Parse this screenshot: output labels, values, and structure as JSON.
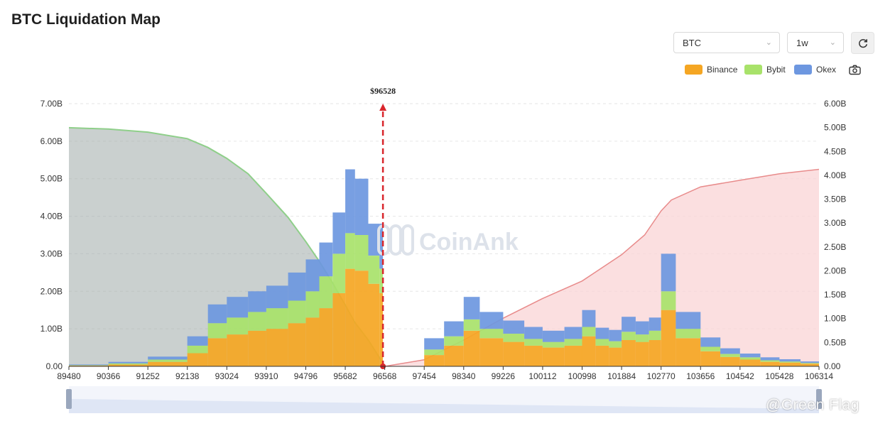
{
  "page": {
    "title": "BTC Liquidation Map"
  },
  "controls": {
    "coin_select": {
      "value": "BTC"
    },
    "period_select": {
      "value": "1w"
    },
    "refresh_icon": "refresh-icon",
    "screenshot_icon": "camera-icon"
  },
  "watermark": {
    "chart_text": "CoinAnk",
    "corner_text": "@Green Flag"
  },
  "chart_data": {
    "type": "area",
    "current_price_label": "$96528",
    "current_price": 96528,
    "x_ticks": [
      "89480",
      "90366",
      "91252",
      "92138",
      "93024",
      "93910",
      "94796",
      "95682",
      "96568",
      "97454",
      "98340",
      "99226",
      "100112",
      "100998",
      "101884",
      "102770",
      "103656",
      "104542",
      "105428",
      "106314"
    ],
    "x_range": [
      89480,
      106314
    ],
    "y_left": {
      "ticks": [
        "0.00",
        "1.00B",
        "2.00B",
        "3.00B",
        "4.00B",
        "5.00B",
        "6.00B",
        "7.00B"
      ],
      "range": [
        0,
        7
      ]
    },
    "y_right": {
      "ticks": [
        "0.00",
        "0.50B",
        "1.00B",
        "1.50B",
        "2.00B",
        "2.50B",
        "3.00B",
        "3.50B",
        "4.00B",
        "4.50B",
        "5.00B",
        "6.00B"
      ],
      "range": [
        0,
        6
      ]
    },
    "legend": [
      {
        "name": "Binance",
        "color": "#f5a623"
      },
      {
        "name": "Bybit",
        "color": "#a8e26a"
      },
      {
        "name": "Okex",
        "color": "#6d97e0"
      }
    ],
    "stacked_bars": {
      "x": [
        89480,
        90366,
        91252,
        92138,
        92600,
        93024,
        93500,
        93910,
        94400,
        94796,
        95100,
        95400,
        95682,
        95900,
        96200,
        96450,
        96528,
        97000,
        97454,
        97900,
        98340,
        98700,
        99226,
        99700,
        100112,
        100600,
        100998,
        101300,
        101600,
        101884,
        102200,
        102500,
        102770,
        103100,
        103656,
        104100,
        104542,
        105000,
        105428,
        105900,
        106314
      ],
      "binance": [
        0.02,
        0.05,
        0.12,
        0.35,
        0.75,
        0.85,
        0.95,
        1.0,
        1.15,
        1.3,
        1.55,
        1.95,
        2.6,
        2.55,
        2.2,
        1.95,
        0.0,
        0.0,
        0.3,
        0.55,
        0.95,
        0.75,
        0.65,
        0.55,
        0.5,
        0.55,
        0.8,
        0.55,
        0.5,
        0.7,
        0.65,
        0.7,
        1.5,
        0.75,
        0.4,
        0.25,
        0.18,
        0.12,
        0.1,
        0.07,
        0.0
      ],
      "bybit": [
        0.01,
        0.03,
        0.06,
        0.2,
        0.4,
        0.45,
        0.5,
        0.55,
        0.6,
        0.7,
        0.85,
        1.05,
        0.95,
        0.95,
        0.75,
        0.65,
        0.0,
        0.0,
        0.15,
        0.25,
        0.3,
        0.25,
        0.22,
        0.18,
        0.15,
        0.18,
        0.25,
        0.18,
        0.17,
        0.22,
        0.2,
        0.25,
        0.5,
        0.25,
        0.12,
        0.08,
        0.06,
        0.04,
        0.03,
        0.02,
        0.0
      ],
      "okex": [
        0.02,
        0.04,
        0.08,
        0.25,
        0.5,
        0.55,
        0.55,
        0.6,
        0.75,
        0.85,
        0.9,
        1.1,
        1.7,
        1.5,
        0.85,
        1.2,
        0.0,
        0.0,
        0.3,
        0.4,
        0.6,
        0.45,
        0.35,
        0.32,
        0.3,
        0.32,
        0.45,
        0.3,
        0.3,
        0.4,
        0.35,
        0.35,
        1.0,
        0.45,
        0.25,
        0.15,
        0.1,
        0.08,
        0.06,
        0.04,
        0.0
      ]
    },
    "cumulative_long": {
      "name": "",
      "color": "#8fcf8a",
      "x": [
        89480,
        90366,
        91252,
        92138,
        92600,
        93024,
        93500,
        93910,
        94400,
        94796,
        95100,
        95400,
        95682,
        95900,
        96200,
        96450,
        96528
      ],
      "y": [
        5.45,
        5.42,
        5.35,
        5.2,
        5.0,
        4.75,
        4.4,
        3.95,
        3.4,
        2.85,
        2.4,
        1.9,
        1.4,
        1.0,
        0.6,
        0.2,
        0.05
      ]
    },
    "cumulative_short": {
      "name": "",
      "color": "#e88b8b",
      "x": [
        96568,
        97454,
        98340,
        99226,
        100112,
        100998,
        101884,
        102400,
        102770,
        103000,
        103656,
        104542,
        105428,
        106314
      ],
      "y": [
        0.0,
        0.15,
        0.6,
        1.1,
        1.55,
        1.95,
        2.55,
        3.0,
        3.55,
        3.8,
        4.1,
        4.25,
        4.4,
        4.5
      ]
    }
  }
}
